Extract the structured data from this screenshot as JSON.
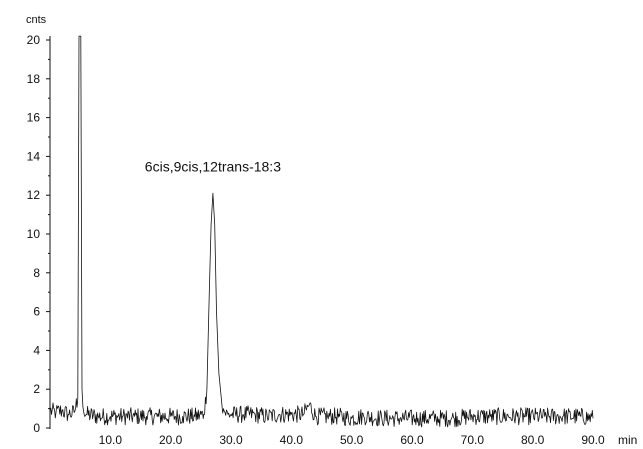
{
  "chart_data": {
    "type": "line",
    "ylabel": "cnts",
    "xlabel": "min",
    "xlim": [
      0,
      90
    ],
    "ylim": [
      0,
      20
    ],
    "x_ticks": [
      {
        "value": 10,
        "label": "10.0"
      },
      {
        "value": 20,
        "label": "20.0"
      },
      {
        "value": 30,
        "label": "30.0"
      },
      {
        "value": 40,
        "label": "40.0"
      },
      {
        "value": 50,
        "label": "50.0"
      },
      {
        "value": 60,
        "label": "60.0"
      },
      {
        "value": 70,
        "label": "70.0"
      },
      {
        "value": 80,
        "label": "80.0"
      },
      {
        "value": 90,
        "label": "90.0"
      }
    ],
    "y_ticks": [
      {
        "value": 0,
        "label": "0"
      },
      {
        "value": 2,
        "label": "2"
      },
      {
        "value": 4,
        "label": "4"
      },
      {
        "value": 6,
        "label": "6"
      },
      {
        "value": 8,
        "label": "8"
      },
      {
        "value": 10,
        "label": "10"
      },
      {
        "value": 12,
        "label": "12"
      },
      {
        "value": 14,
        "label": "14"
      },
      {
        "value": 16,
        "label": "16"
      },
      {
        "value": 18,
        "label": "18"
      },
      {
        "value": 20,
        "label": "20"
      }
    ],
    "grid": false,
    "series": [
      {
        "color": "#111111",
        "x": [
          0.0,
          1.0,
          2.0,
          3.0,
          4.0,
          4.6,
          4.8,
          4.95,
          5.1,
          5.3,
          5.6,
          6.0,
          8.0,
          10.0,
          12.0,
          14.0,
          16.0,
          18.0,
          20.0,
          22.0,
          24.0,
          25.5,
          26.0,
          26.4,
          26.7,
          27.0,
          27.3,
          27.6,
          28.0,
          28.5,
          29.0,
          29.5,
          30.0,
          32.0,
          34.0,
          36.0,
          38.0,
          40.0,
          42.0,
          43.0,
          44.0,
          46.0,
          48.0,
          50.0,
          52.0,
          55.0,
          58.0,
          61.0,
          64.0,
          67.0,
          70.0,
          73.0,
          76.0,
          79.0,
          82.0,
          85.0,
          88.0,
          90.0
        ],
        "y": [
          0.9,
          0.8,
          0.9,
          0.7,
          0.8,
          1.5,
          20.2,
          20.2,
          20.2,
          2.0,
          0.8,
          0.7,
          0.6,
          0.6,
          0.6,
          0.6,
          0.6,
          0.6,
          0.6,
          0.6,
          0.6,
          0.7,
          2.0,
          7.0,
          10.5,
          12.1,
          10.5,
          6.0,
          2.8,
          1.2,
          0.8,
          0.7,
          0.7,
          0.7,
          0.7,
          0.6,
          0.7,
          0.7,
          0.7,
          1.2,
          0.6,
          0.6,
          0.6,
          0.5,
          0.6,
          0.5,
          0.5,
          0.5,
          0.5,
          0.5,
          0.6,
          0.6,
          0.6,
          0.6,
          0.6,
          0.6,
          0.6,
          0.5
        ]
      }
    ],
    "annotations": [
      {
        "text": "6cis,9cis,12trans-18:3",
        "x": 27.0,
        "y": 12.2
      }
    ]
  }
}
